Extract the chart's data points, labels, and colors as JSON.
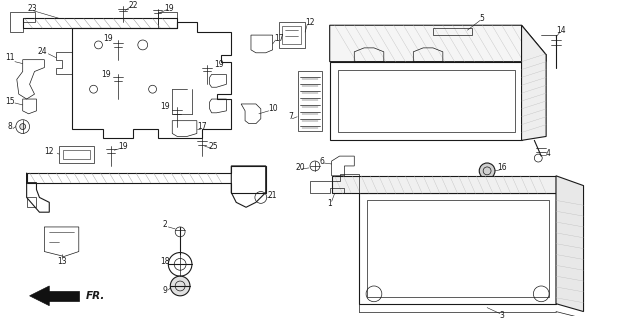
{
  "bg_color": "#ffffff",
  "line_color": "#1a1a1a",
  "fig_width": 6.21,
  "fig_height": 3.2,
  "dpi": 100,
  "lw_thin": 0.5,
  "lw_med": 0.8,
  "lw_thick": 1.1
}
